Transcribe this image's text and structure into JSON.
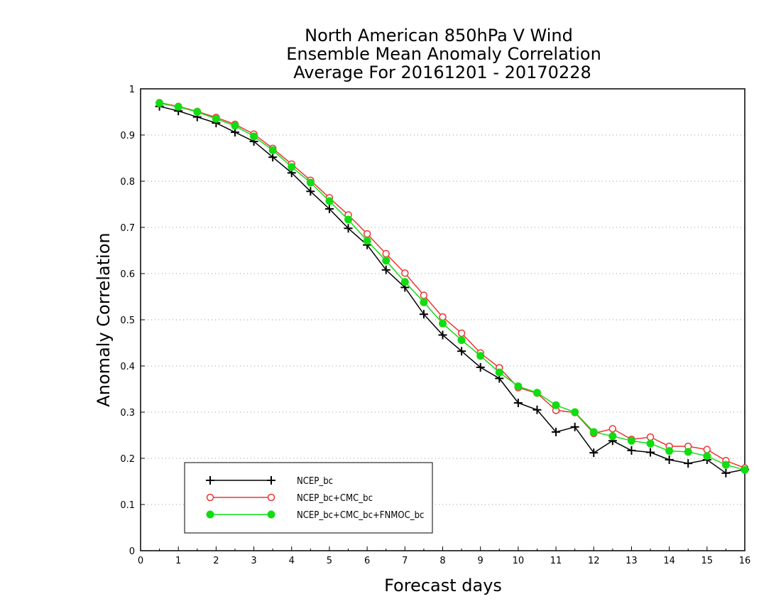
{
  "chart_data": {
    "type": "line",
    "title_lines": [
      "North American 850hPa V Wind",
      "Ensemble Mean Anomaly Correlation",
      "Average For 20161201 - 20170228"
    ],
    "xlabel": "Forecast days",
    "ylabel": "Anomaly Correlation",
    "xlim": [
      0,
      16
    ],
    "ylim": [
      0,
      1
    ],
    "x_ticks": [
      "0",
      "1",
      "2",
      "3",
      "4",
      "5",
      "6",
      "7",
      "8",
      "9",
      "10",
      "11",
      "12",
      "13",
      "14",
      "15",
      "16"
    ],
    "y_ticks": [
      "0",
      "0.1",
      "0.2",
      "0.3",
      "0.4",
      "0.5",
      "0.6",
      "0.7",
      "0.8",
      "0.9",
      "1"
    ],
    "grid": "horizontal dotted",
    "legend_position": "bottom-left",
    "x": [
      0.5,
      1,
      1.5,
      2,
      2.5,
      3,
      3.5,
      4,
      4.5,
      5,
      5.5,
      6,
      6.5,
      7,
      7.5,
      8,
      8.5,
      9,
      9.5,
      10,
      10.5,
      11,
      11.5,
      12,
      12.5,
      13,
      13.5,
      14,
      14.5,
      15,
      15.5,
      16
    ],
    "series": [
      {
        "name": "NCEP_bc",
        "color": "#000000",
        "marker": "plus",
        "values": [
          0.962,
          0.952,
          0.939,
          0.926,
          0.906,
          0.886,
          0.852,
          0.818,
          0.778,
          0.74,
          0.698,
          0.662,
          0.608,
          0.57,
          0.512,
          0.467,
          0.432,
          0.397,
          0.373,
          0.32,
          0.305,
          0.257,
          0.268,
          0.212,
          0.238,
          0.217,
          0.213,
          0.197,
          0.189,
          0.197,
          0.168,
          0.176
        ]
      },
      {
        "name": "NCEP_bc+CMC_bc",
        "color": "#ee3333",
        "marker": "open-circle",
        "values": [
          0.97,
          0.962,
          0.951,
          0.938,
          0.923,
          0.902,
          0.871,
          0.837,
          0.802,
          0.764,
          0.727,
          0.686,
          0.643,
          0.601,
          0.553,
          0.506,
          0.471,
          0.428,
          0.396,
          0.353,
          0.341,
          0.304,
          0.299,
          0.254,
          0.264,
          0.241,
          0.246,
          0.226,
          0.226,
          0.219,
          0.195,
          0.179
        ]
      },
      {
        "name": "NCEP_bc+CMC_bc+FNMOC_bc",
        "color": "#11dd11",
        "marker": "filled-circle",
        "values": [
          0.969,
          0.961,
          0.95,
          0.935,
          0.92,
          0.897,
          0.867,
          0.831,
          0.797,
          0.757,
          0.717,
          0.671,
          0.628,
          0.582,
          0.538,
          0.492,
          0.456,
          0.422,
          0.386,
          0.356,
          0.342,
          0.315,
          0.3,
          0.257,
          0.248,
          0.238,
          0.232,
          0.216,
          0.214,
          0.205,
          0.186,
          0.175
        ]
      }
    ]
  }
}
